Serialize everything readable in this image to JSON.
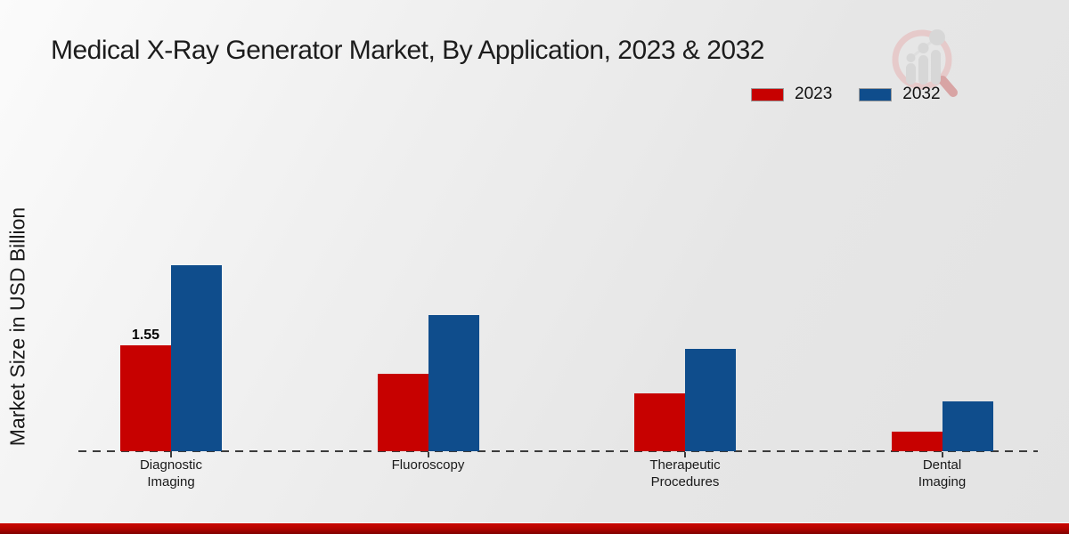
{
  "title": "Medical X-Ray Generator Market, By Application, 2023 & 2032",
  "ylabel": "Market Size in USD Billion",
  "legend": [
    {
      "label": "2023",
      "color": "#c70100"
    },
    {
      "label": "2032",
      "color": "#0f4d8c"
    }
  ],
  "colors": {
    "bar_2023": "#c70100",
    "bar_2032": "#0f4d8c",
    "footer_strip": "#b40400",
    "baseline": "#3c3c3c",
    "watermark_ring": "#e6caca",
    "watermark_gray": "#d7d7d7"
  },
  "chart_data": {
    "type": "bar",
    "categories": [
      "Diagnostic Imaging",
      "Fluoroscopy",
      "Therapeutic Procedures",
      "Dental Imaging"
    ],
    "category_label_lines": [
      [
        "Diagnostic",
        "Imaging"
      ],
      [
        "Fluoroscopy"
      ],
      [
        "Therapeutic",
        "Procedures"
      ],
      [
        "Dental",
        "Imaging"
      ]
    ],
    "series": [
      {
        "name": "2023",
        "color": "#c70100",
        "values": [
          1.55,
          1.13,
          0.84,
          0.29
        ]
      },
      {
        "name": "2032",
        "color": "#0f4d8c",
        "values": [
          2.72,
          1.99,
          1.49,
          0.73
        ]
      }
    ],
    "data_labels": [
      {
        "series_index": 0,
        "category_index": 0,
        "text": "1.55"
      }
    ],
    "ylabel": "Market Size in USD Billion",
    "ylim": [
      0,
      3
    ],
    "grid": false,
    "legend_position": "top-right"
  },
  "watermark": "magnifier-bar-chart-logo"
}
